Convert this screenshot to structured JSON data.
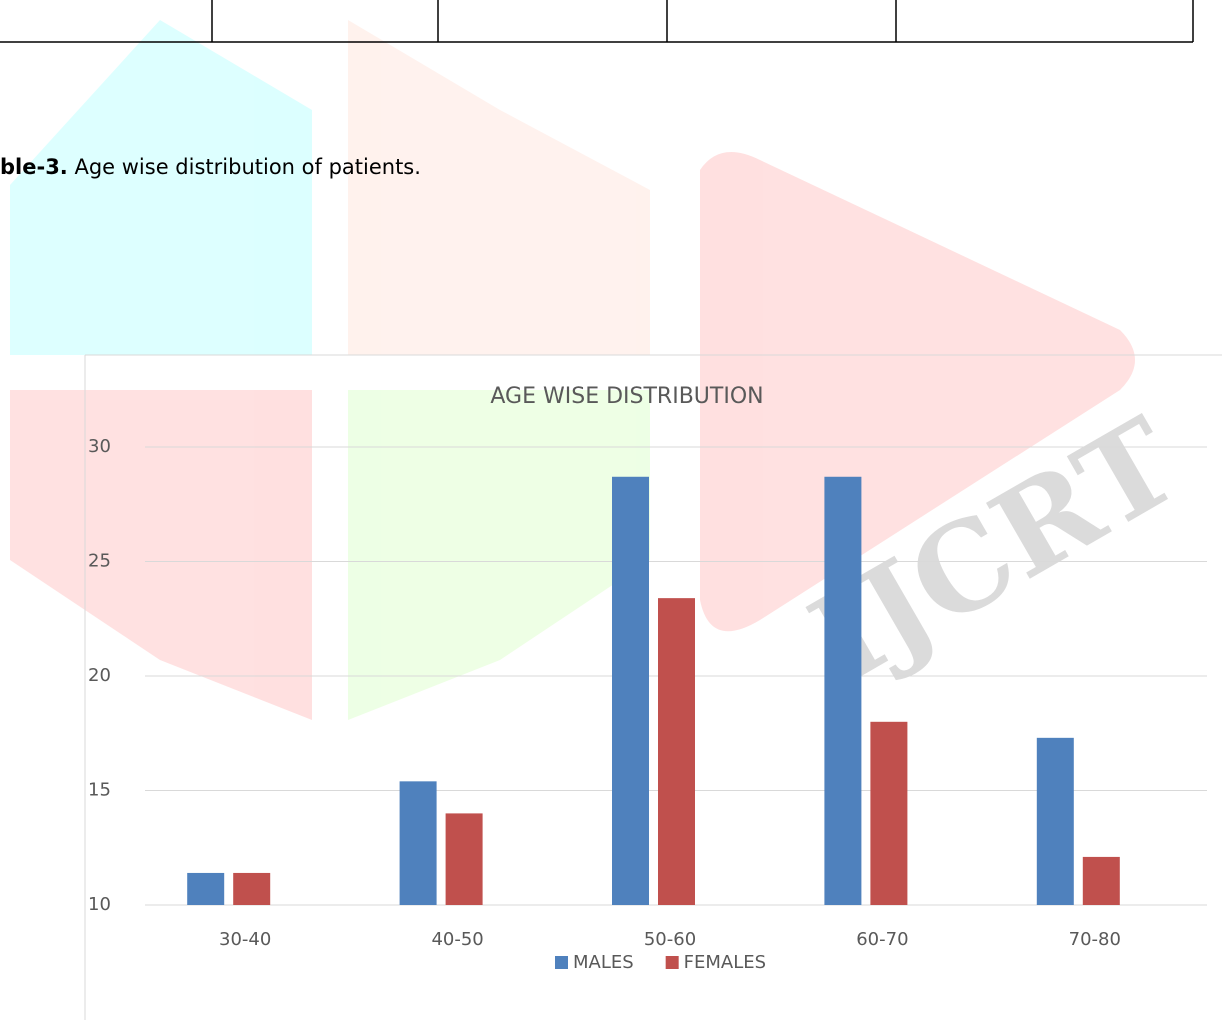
{
  "caption": {
    "label": "ble-3.",
    "text": "Age wise distribution of patients."
  },
  "watermark": "IJCRT",
  "chart_data": {
    "type": "bar",
    "title": "AGE WISE DISTRIBUTION",
    "categories": [
      "30-40",
      "40-50",
      "50-60",
      "60-70",
      "70-80"
    ],
    "series": [
      {
        "name": "MALES",
        "color": "#4f81bd",
        "values": [
          11.4,
          15.4,
          28.7,
          28.7,
          17.3
        ]
      },
      {
        "name": "FEMALES",
        "color": "#c0504d",
        "values": [
          11.4,
          14.0,
          23.4,
          18.0,
          12.1
        ]
      }
    ],
    "ylim": [
      10,
      30
    ],
    "yticks": [
      10,
      15,
      20,
      25,
      30
    ],
    "grid": true,
    "legend": "bottom"
  }
}
